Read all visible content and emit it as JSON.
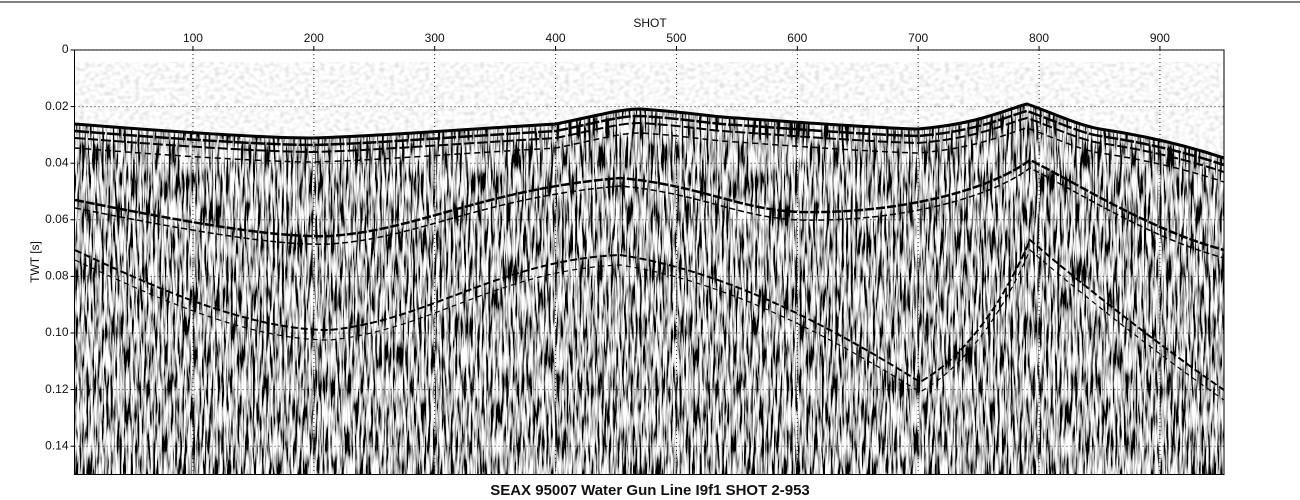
{
  "chart_data": {
    "type": "seismic",
    "title": "SEAX 95007 Water Gun Line I9f1 SHOT 2-953",
    "x_label": "SHOT",
    "y_label": "TWT [s]",
    "xlim": [
      2,
      953
    ],
    "xticks": [
      100,
      200,
      300,
      400,
      500,
      600,
      700,
      800,
      900
    ],
    "ylim": [
      0,
      0.15
    ],
    "yticks": [
      0,
      0.02,
      0.04,
      0.06,
      0.08,
      {
        "value": 0.1,
        "label": "0.10"
      },
      0.12,
      0.14
    ],
    "y_inverted": true,
    "x_axis_position": "top",
    "grid": true
  }
}
